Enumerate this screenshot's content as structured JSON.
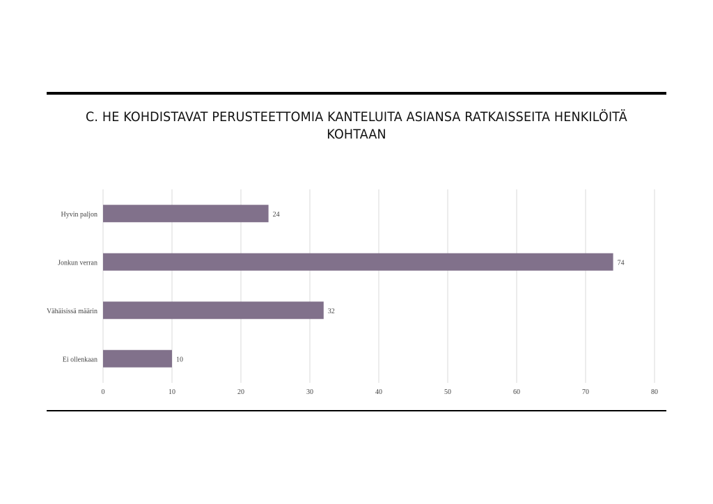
{
  "chart_data": {
    "type": "bar",
    "orientation": "horizontal",
    "title": "C. HE KOHDISTAVAT PERUSTEETTOMIA KANTELUITA ASIANSA RATKAISSEITA HENKILÖITÄ KOHTAAN",
    "categories": [
      "Hyvin paljon",
      "Jonkun verran",
      "Vähäisissä määrin",
      "Ei ollenkaan"
    ],
    "values": [
      24,
      74,
      32,
      10
    ],
    "data_labels": [
      "24",
      "74",
      "32",
      "10"
    ],
    "xlim": [
      0,
      80
    ],
    "x_ticks": [
      "0",
      "10",
      "20",
      "30",
      "40",
      "50",
      "60",
      "70",
      "80"
    ],
    "grid": true,
    "legend": "none",
    "bar_color": "#81718b"
  }
}
